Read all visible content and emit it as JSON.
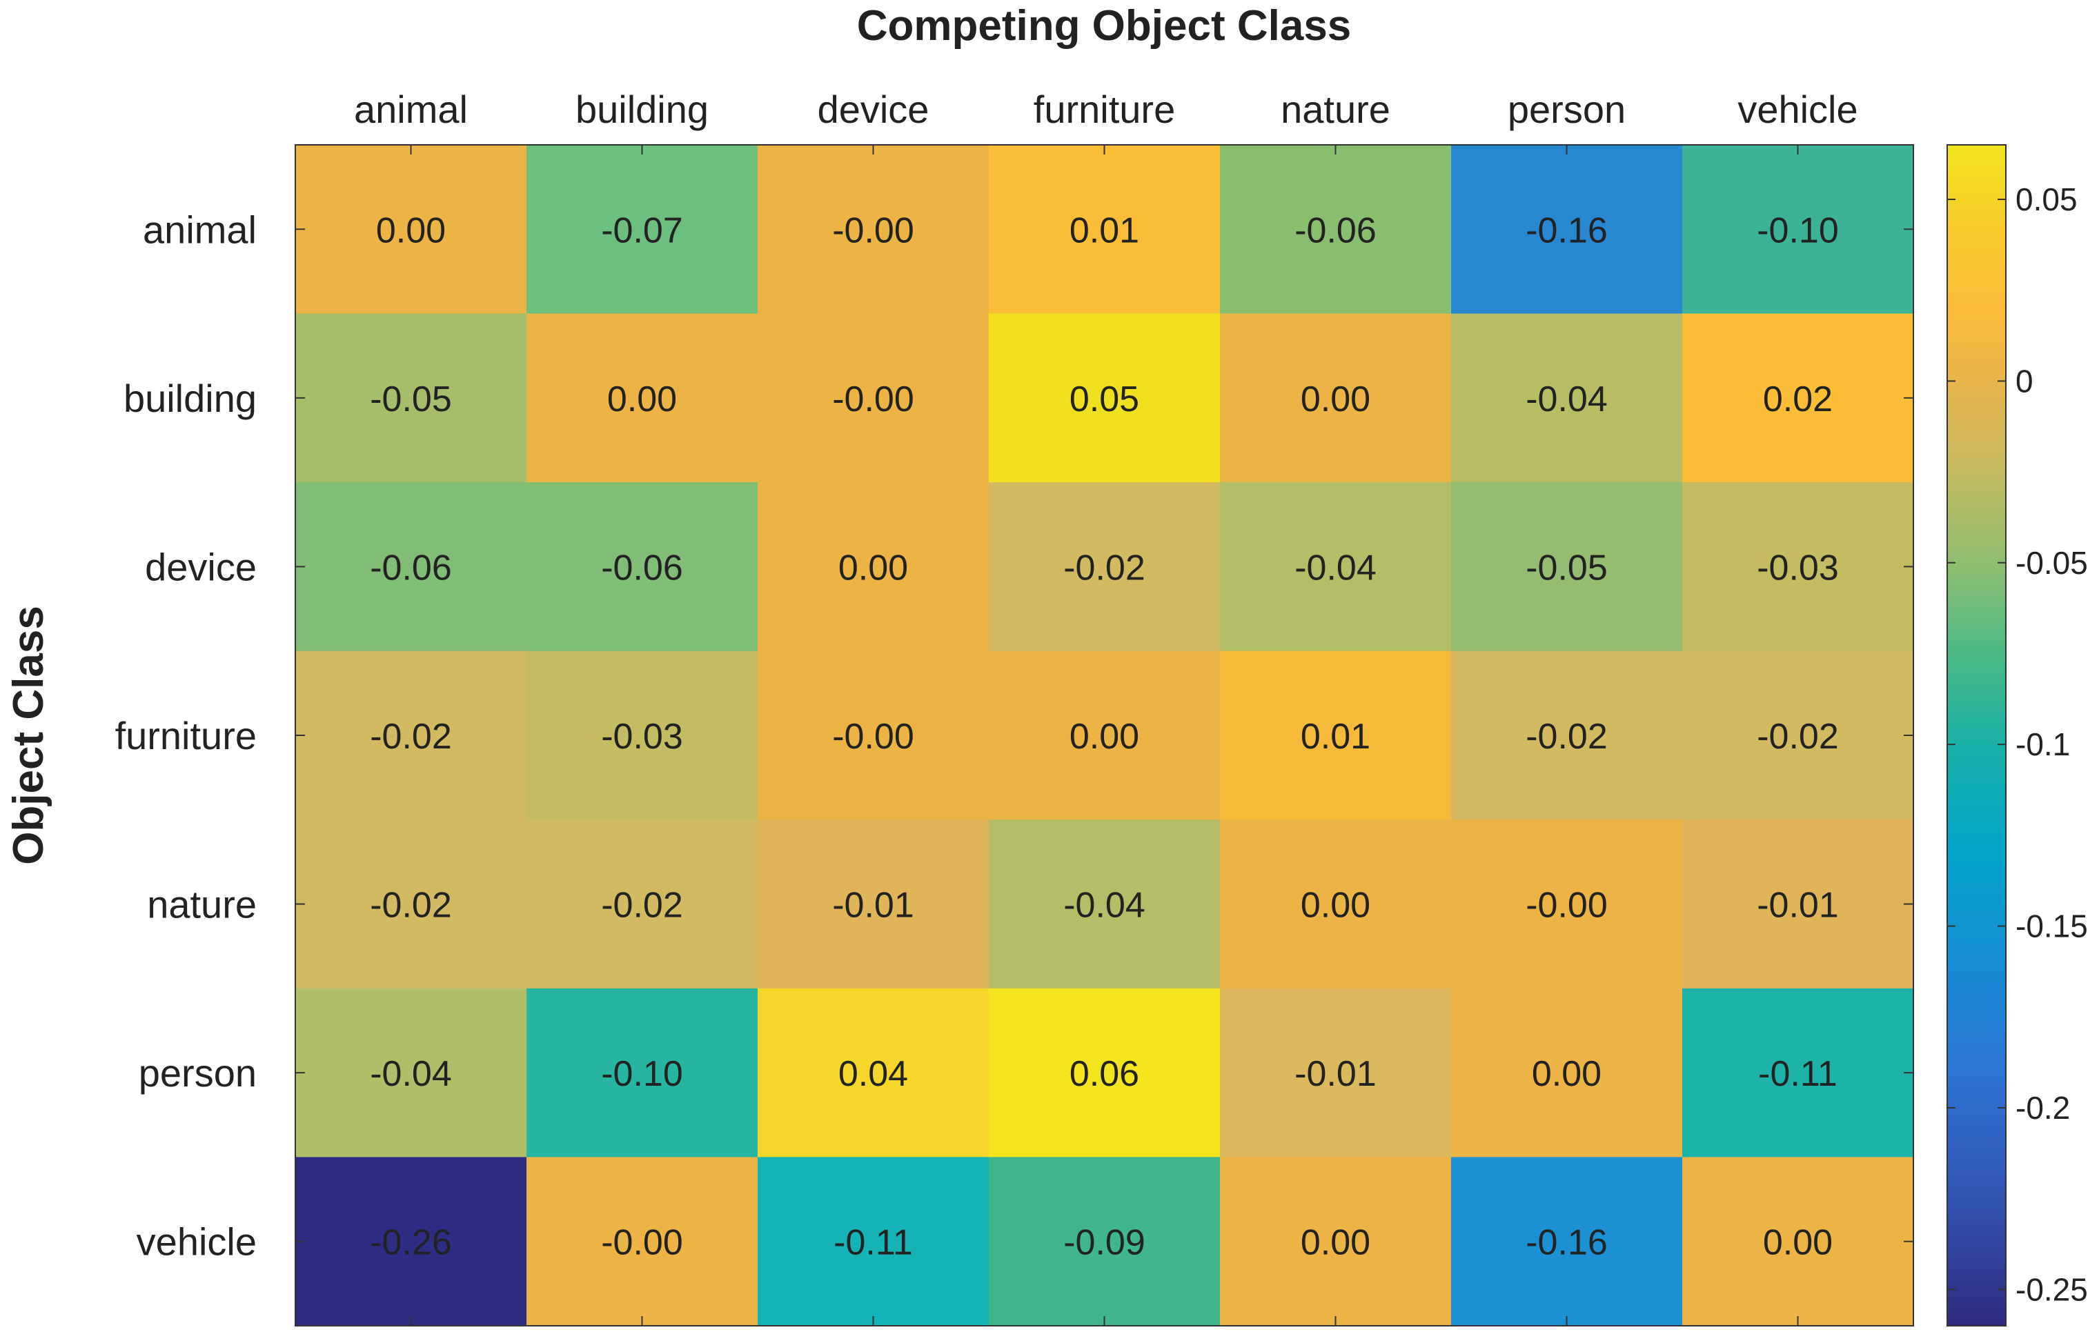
{
  "chart_data": {
    "type": "heatmap",
    "title": "Competing Object Class",
    "xlabel": "Competing Object Class",
    "ylabel": "Object Class",
    "x_categories": [
      "animal",
      "building",
      "device",
      "furniture",
      "nature",
      "person",
      "vehicle"
    ],
    "y_categories": [
      "animal",
      "building",
      "device",
      "furniture",
      "nature",
      "person",
      "vehicle"
    ],
    "values": [
      [
        0.0,
        -0.07,
        -0.0,
        0.01,
        -0.06,
        -0.16,
        -0.1
      ],
      [
        -0.05,
        0.0,
        -0.0,
        0.05,
        0.0,
        -0.04,
        0.02
      ],
      [
        -0.06,
        -0.06,
        0.0,
        -0.02,
        -0.04,
        -0.05,
        -0.03
      ],
      [
        -0.02,
        -0.03,
        -0.0,
        0.0,
        0.01,
        -0.02,
        -0.02
      ],
      [
        -0.02,
        -0.02,
        -0.01,
        -0.04,
        0.0,
        -0.0,
        -0.01
      ],
      [
        -0.04,
        -0.1,
        0.04,
        0.06,
        -0.01,
        0.0,
        -0.11
      ],
      [
        -0.26,
        -0.0,
        -0.11,
        -0.09,
        0.0,
        -0.16,
        0.0
      ]
    ],
    "cell_labels": [
      [
        "0.00",
        "-0.07",
        "-0.00",
        "0.01",
        "-0.06",
        "-0.16",
        "-0.10"
      ],
      [
        "-0.05",
        "0.00",
        "-0.00",
        "0.05",
        "0.00",
        "-0.04",
        "0.02"
      ],
      [
        "-0.06",
        "-0.06",
        "0.00",
        "-0.02",
        "-0.04",
        "-0.05",
        "-0.03"
      ],
      [
        "-0.02",
        "-0.03",
        "-0.00",
        "0.00",
        "0.01",
        "-0.02",
        "-0.02"
      ],
      [
        "-0.02",
        "-0.02",
        "-0.01",
        "-0.04",
        "0.00",
        "-0.00",
        "-0.01"
      ],
      [
        "-0.04",
        "-0.10",
        "0.04",
        "0.06",
        "-0.01",
        "0.00",
        "-0.11"
      ],
      [
        "-0.26",
        "-0.00",
        "-0.11",
        "-0.09",
        "0.00",
        "-0.16",
        "0.00"
      ]
    ],
    "cell_colors": [
      [
        "#ebb444",
        "#6cbf7c",
        "#ebb444",
        "#fabd38",
        "#87bf6f",
        "#2787d0",
        "#3cb397"
      ],
      [
        "#a6bd6b",
        "#ebb444",
        "#ebb444",
        "#f0df1e",
        "#ebb444",
        "#b8bd65",
        "#fcbe36"
      ],
      [
        "#7fbe74",
        "#7fbe74",
        "#ebb444",
        "#d4b963",
        "#b4bd67",
        "#94bd72",
        "#c4bb63"
      ],
      [
        "#d4b963",
        "#c4bb63",
        "#ebb444",
        "#ebb444",
        "#f6ba3a",
        "#d4b963",
        "#d4b963"
      ],
      [
        "#d4b963",
        "#d4b963",
        "#e0b55a",
        "#b4bd67",
        "#ebb444",
        "#ebb444",
        "#e0b55a"
      ],
      [
        "#b0bd69",
        "#27b5a3",
        "#f5d62a",
        "#f3e41e",
        "#dcb95e",
        "#ebb444",
        "#1db3ab"
      ],
      [
        "#2f2d83",
        "#ebb444",
        "#15b2b6",
        "#40b58e",
        "#ebb444",
        "#1b90d2",
        "#ebb444"
      ]
    ],
    "colorbar": {
      "colormap": "parula",
      "range": [
        -0.26,
        0.065
      ],
      "ticks": [
        0.05,
        0,
        -0.05,
        -0.1,
        -0.15,
        -0.2,
        -0.25
      ],
      "tick_labels": [
        "0.05",
        "0",
        "-0.05",
        "-0.1",
        "-0.15",
        "-0.2",
        "-0.25"
      ],
      "stops": [
        {
          "value": 0.065,
          "color": "#f3e41e"
        },
        {
          "value": 0.04,
          "color": "#f6c92c"
        },
        {
          "value": 0.02,
          "color": "#fbbc3a"
        },
        {
          "value": 0.0,
          "color": "#e8b54a"
        },
        {
          "value": -0.02,
          "color": "#cfba5e"
        },
        {
          "value": -0.05,
          "color": "#8fbe70"
        },
        {
          "value": -0.075,
          "color": "#4cba84"
        },
        {
          "value": -0.1,
          "color": "#19b1a8"
        },
        {
          "value": -0.13,
          "color": "#03a4c9"
        },
        {
          "value": -0.16,
          "color": "#168dd4"
        },
        {
          "value": -0.19,
          "color": "#2d74d4"
        },
        {
          "value": -0.22,
          "color": "#3159b8"
        },
        {
          "value": -0.26,
          "color": "#2f2b80"
        }
      ]
    },
    "ticks_on_top": true,
    "grid": false
  }
}
